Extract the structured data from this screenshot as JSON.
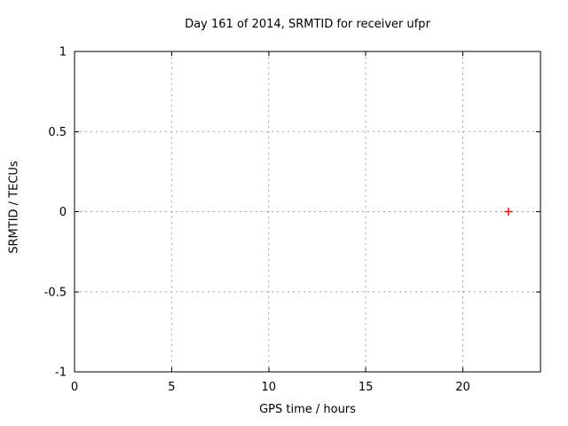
{
  "chart_data": {
    "type": "scatter",
    "title": "Day 161 of 2014, SRMTID for receiver ufpr",
    "xlabel": "GPS time / hours",
    "ylabel": "SRMTID / TECUs",
    "xlim": [
      0,
      24
    ],
    "ylim": [
      -1,
      1
    ],
    "xticks": [
      0,
      5,
      10,
      15,
      20
    ],
    "yticks": [
      -1,
      -0.5,
      0,
      0.5,
      1
    ],
    "grid": true,
    "legend": "none",
    "series": [
      {
        "name": "SRMTID",
        "marker": "plus",
        "color": "#ff0000",
        "points": [
          {
            "x": 22.35,
            "y": 0
          }
        ]
      }
    ],
    "colors": {
      "background": "#ffffff",
      "border": "#000000",
      "grid": "#a0a0a0",
      "text": "#000000"
    }
  }
}
